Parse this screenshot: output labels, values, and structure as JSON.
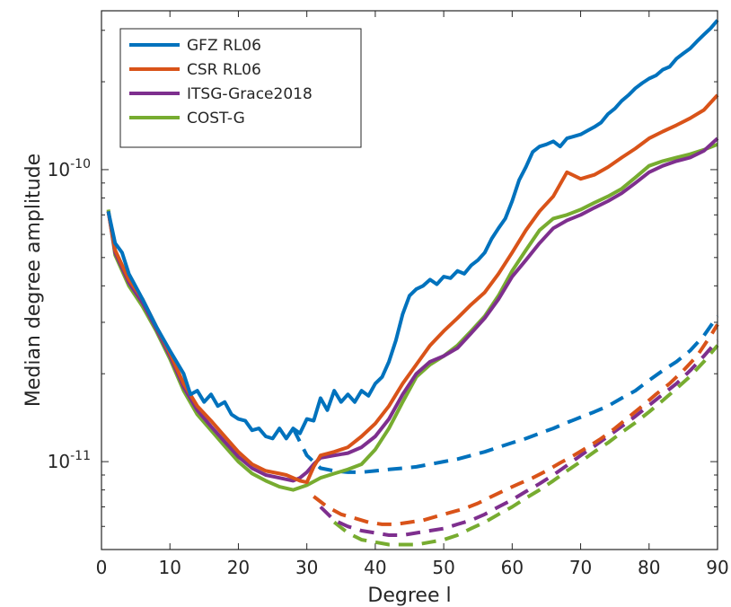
{
  "chart_data": {
    "type": "line",
    "xlabel": "Degree l",
    "ylabel": "Median degree amplitude",
    "xlim": [
      0,
      90
    ],
    "ylim": [
      5e-12,
      3.5e-10
    ],
    "yscale": "log",
    "x_ticks": [
      {
        "value": 0,
        "label": "0"
      },
      {
        "value": 10,
        "label": "10"
      },
      {
        "value": 20,
        "label": "20"
      },
      {
        "value": 30,
        "label": "30"
      },
      {
        "value": 40,
        "label": "40"
      },
      {
        "value": 50,
        "label": "50"
      },
      {
        "value": 60,
        "label": "60"
      },
      {
        "value": 70,
        "label": "70"
      },
      {
        "value": 80,
        "label": "80"
      },
      {
        "value": 90,
        "label": "90"
      }
    ],
    "y_ticks": [
      {
        "value": 1e-11,
        "base": "10",
        "exp": "-11"
      },
      {
        "value": 1e-10,
        "base": "10",
        "exp": "-10"
      }
    ],
    "legend_position": "top-left",
    "series": [
      {
        "name": "GFZ RL06",
        "color": "#0072BD",
        "solid": {
          "x": [
            1,
            2,
            3,
            4,
            6,
            8,
            10,
            12,
            13,
            14,
            15,
            16,
            17,
            18,
            19,
            20,
            21,
            22,
            23,
            24,
            25,
            26,
            27,
            28,
            29,
            30,
            31,
            32,
            33,
            34,
            35,
            36,
            37,
            38,
            39,
            40,
            41,
            42,
            43,
            44,
            45,
            46,
            47,
            48,
            49,
            50,
            51,
            52,
            53,
            54,
            55,
            56,
            57,
            58,
            59,
            60,
            61,
            62,
            63,
            64,
            65,
            66,
            67,
            68,
            69,
            70,
            71,
            72,
            73,
            74,
            75,
            76,
            77,
            78,
            79,
            80,
            81,
            82,
            83,
            84,
            85,
            86,
            87,
            88,
            89,
            90
          ],
          "y": [
            7.2e-11,
            5.6e-11,
            5.2e-11,
            4.4e-11,
            3.6e-11,
            2.9e-11,
            2.4e-11,
            2e-11,
            1.7e-11,
            1.75e-11,
            1.6e-11,
            1.7e-11,
            1.55e-11,
            1.6e-11,
            1.45e-11,
            1.4e-11,
            1.38e-11,
            1.28e-11,
            1.3e-11,
            1.22e-11,
            1.2e-11,
            1.3e-11,
            1.2e-11,
            1.3e-11,
            1.25e-11,
            1.4e-11,
            1.38e-11,
            1.65e-11,
            1.5e-11,
            1.75e-11,
            1.6e-11,
            1.7e-11,
            1.6e-11,
            1.75e-11,
            1.68e-11,
            1.85e-11,
            1.95e-11,
            2.2e-11,
            2.6e-11,
            3.2e-11,
            3.7e-11,
            3.9e-11,
            4e-11,
            4.2e-11,
            4.05e-11,
            4.3e-11,
            4.25e-11,
            4.5e-11,
            4.4e-11,
            4.7e-11,
            4.9e-11,
            5.2e-11,
            5.8e-11,
            6.3e-11,
            6.8e-11,
            7.8e-11,
            9.2e-11,
            1.02e-10,
            1.15e-10,
            1.2e-10,
            1.22e-10,
            1.25e-10,
            1.2e-10,
            1.28e-10,
            1.3e-10,
            1.32e-10,
            1.36e-10,
            1.4e-10,
            1.45e-10,
            1.55e-10,
            1.62e-10,
            1.72e-10,
            1.8e-10,
            1.9e-10,
            1.98e-10,
            2.05e-10,
            2.1e-10,
            2.2e-10,
            2.25e-10,
            2.4e-10,
            2.5e-10,
            2.6e-10,
            2.75e-10,
            2.9e-10,
            3.05e-10,
            3.25e-10
          ]
        },
        "dashed": {
          "x": [
            28,
            30,
            32,
            34,
            36,
            38,
            40,
            42,
            44,
            46,
            48,
            50,
            52,
            54,
            56,
            58,
            60,
            62,
            64,
            66,
            68,
            70,
            72,
            74,
            76,
            78,
            80,
            82,
            84,
            86,
            88,
            90
          ],
          "y": [
            1.3e-11,
            1.05e-11,
            9.5e-12,
            9.3e-12,
            9.2e-12,
            9.2e-12,
            9.3e-12,
            9.4e-12,
            9.5e-12,
            9.6e-12,
            9.8e-12,
            1e-11,
            1.02e-11,
            1.05e-11,
            1.08e-11,
            1.12e-11,
            1.16e-11,
            1.2e-11,
            1.25e-11,
            1.3e-11,
            1.36e-11,
            1.42e-11,
            1.48e-11,
            1.55e-11,
            1.65e-11,
            1.75e-11,
            1.9e-11,
            2.05e-11,
            2.2e-11,
            2.4e-11,
            2.7e-11,
            3.15e-11
          ]
        }
      },
      {
        "name": "CSR RL06",
        "color": "#D95319",
        "solid": {
          "x": [
            1,
            2,
            4,
            6,
            8,
            10,
            12,
            14,
            16,
            18,
            20,
            22,
            24,
            26,
            27,
            28,
            29,
            30,
            31,
            32,
            34,
            36,
            38,
            40,
            42,
            44,
            46,
            48,
            50,
            52,
            54,
            56,
            58,
            60,
            62,
            64,
            66,
            68,
            70,
            72,
            74,
            76,
            78,
            80,
            82,
            84,
            86,
            88,
            90
          ],
          "y": [
            7.2e-11,
            5.3e-11,
            4.2e-11,
            3.6e-11,
            2.9e-11,
            2.35e-11,
            1.85e-11,
            1.55e-11,
            1.38e-11,
            1.22e-11,
            1.08e-11,
            9.8e-12,
            9.3e-12,
            9.1e-12,
            9e-12,
            8.8e-12,
            8.6e-12,
            8.5e-12,
            9.6e-12,
            1.05e-11,
            1.08e-11,
            1.12e-11,
            1.22e-11,
            1.35e-11,
            1.55e-11,
            1.85e-11,
            2.15e-11,
            2.5e-11,
            2.8e-11,
            3.1e-11,
            3.45e-11,
            3.8e-11,
            4.4e-11,
            5.2e-11,
            6.2e-11,
            7.2e-11,
            8.1e-11,
            9.8e-11,
            9.3e-11,
            9.6e-11,
            1.02e-10,
            1.1e-10,
            1.18e-10,
            1.28e-10,
            1.35e-10,
            1.42e-10,
            1.5e-10,
            1.6e-10,
            1.8e-10
          ]
        },
        "dashed": {
          "x": [
            31,
            33,
            35,
            37,
            39,
            41,
            43,
            45,
            47,
            49,
            51,
            53,
            55,
            57,
            59,
            61,
            63,
            65,
            67,
            69,
            71,
            73,
            75,
            77,
            79,
            81,
            83,
            85,
            87,
            89,
            90
          ],
          "y": [
            7.6e-12,
            7e-12,
            6.6e-12,
            6.4e-12,
            6.2e-12,
            6.1e-12,
            6.1e-12,
            6.2e-12,
            6.3e-12,
            6.5e-12,
            6.7e-12,
            6.9e-12,
            7.2e-12,
            7.6e-12,
            8e-12,
            8.4e-12,
            8.8e-12,
            9.3e-12,
            9.9e-12,
            1.05e-11,
            1.12e-11,
            1.2e-11,
            1.3e-11,
            1.42e-11,
            1.55e-11,
            1.7e-11,
            1.85e-11,
            2.05e-11,
            2.3e-11,
            2.7e-11,
            2.95e-11
          ]
        }
      },
      {
        "name": "ITSG-Grace2018",
        "color": "#7E2F8E",
        "solid": {
          "x": [
            1,
            2,
            4,
            6,
            8,
            10,
            12,
            14,
            16,
            18,
            20,
            22,
            24,
            26,
            28,
            29,
            30,
            31,
            32,
            34,
            36,
            38,
            40,
            42,
            44,
            46,
            48,
            50,
            52,
            54,
            56,
            58,
            60,
            62,
            64,
            66,
            68,
            70,
            72,
            74,
            76,
            78,
            80,
            82,
            84,
            86,
            88,
            90
          ],
          "y": [
            7.2e-11,
            5.2e-11,
            4.1e-11,
            3.5e-11,
            2.85e-11,
            2.3e-11,
            1.8e-11,
            1.5e-11,
            1.32e-11,
            1.17e-11,
            1.04e-11,
            9.5e-12,
            9e-12,
            8.8e-12,
            8.6e-12,
            8.8e-12,
            9.2e-12,
            9.8e-12,
            1.03e-11,
            1.05e-11,
            1.07e-11,
            1.12e-11,
            1.22e-11,
            1.4e-11,
            1.7e-11,
            2e-11,
            2.2e-11,
            2.3e-11,
            2.45e-11,
            2.75e-11,
            3.1e-11,
            3.6e-11,
            4.3e-11,
            4.9e-11,
            5.6e-11,
            6.3e-11,
            6.7e-11,
            7e-11,
            7.4e-11,
            7.8e-11,
            8.3e-11,
            9e-11,
            9.8e-11,
            1.03e-10,
            1.07e-10,
            1.1e-10,
            1.16e-10,
            1.28e-10
          ]
        },
        "dashed": {
          "x": [
            32,
            34,
            36,
            38,
            40,
            42,
            44,
            46,
            48,
            50,
            52,
            54,
            56,
            58,
            60,
            62,
            64,
            66,
            68,
            70,
            72,
            74,
            76,
            78,
            80,
            82,
            84,
            86,
            88,
            90
          ],
          "y": [
            7e-12,
            6.3e-12,
            6e-12,
            5.8e-12,
            5.7e-12,
            5.6e-12,
            5.6e-12,
            5.7e-12,
            5.8e-12,
            5.9e-12,
            6.1e-12,
            6.3e-12,
            6.6e-12,
            7e-12,
            7.4e-12,
            7.9e-12,
            8.4e-12,
            9e-12,
            9.7e-12,
            1.05e-11,
            1.13e-11,
            1.22e-11,
            1.32e-11,
            1.43e-11,
            1.56e-11,
            1.7e-11,
            1.85e-11,
            2.05e-11,
            2.3e-11,
            2.6e-11
          ]
        }
      },
      {
        "name": "COST-G",
        "color": "#77AC30",
        "solid": {
          "x": [
            1,
            2,
            4,
            6,
            8,
            10,
            12,
            14,
            16,
            18,
            20,
            22,
            24,
            26,
            28,
            30,
            32,
            34,
            36,
            38,
            40,
            42,
            44,
            46,
            48,
            50,
            52,
            54,
            56,
            58,
            60,
            62,
            64,
            66,
            68,
            70,
            72,
            74,
            76,
            78,
            80,
            82,
            84,
            86,
            88,
            90
          ],
          "y": [
            7.3e-11,
            5.1e-11,
            4e-11,
            3.4e-11,
            2.8e-11,
            2.25e-11,
            1.75e-11,
            1.45e-11,
            1.28e-11,
            1.13e-11,
            1e-11,
            9.1e-12,
            8.6e-12,
            8.2e-12,
            8e-12,
            8.3e-12,
            8.8e-12,
            9.1e-12,
            9.4e-12,
            9.8e-12,
            1.1e-11,
            1.3e-11,
            1.6e-11,
            1.95e-11,
            2.15e-11,
            2.3e-11,
            2.5e-11,
            2.8e-11,
            3.15e-11,
            3.7e-11,
            4.5e-11,
            5.3e-11,
            6.2e-11,
            6.8e-11,
            7e-11,
            7.3e-11,
            7.7e-11,
            8.1e-11,
            8.6e-11,
            9.4e-11,
            1.03e-10,
            1.07e-10,
            1.1e-10,
            1.13e-10,
            1.17e-10,
            1.22e-10
          ]
        },
        "dashed": {
          "x": [
            34,
            36,
            38,
            40,
            42,
            44,
            46,
            48,
            50,
            52,
            54,
            56,
            58,
            60,
            62,
            64,
            66,
            68,
            70,
            72,
            74,
            76,
            78,
            80,
            82,
            84,
            86,
            88,
            90
          ],
          "y": [
            6.2e-12,
            5.7e-12,
            5.4e-12,
            5.3e-12,
            5.2e-12,
            5.2e-12,
            5.2e-12,
            5.3e-12,
            5.4e-12,
            5.6e-12,
            5.9e-12,
            6.2e-12,
            6.6e-12,
            7e-12,
            7.5e-12,
            8e-12,
            8.6e-12,
            9.3e-12,
            1e-11,
            1.08e-11,
            1.16e-11,
            1.26e-11,
            1.36e-11,
            1.48e-11,
            1.62e-11,
            1.78e-11,
            1.96e-11,
            2.2e-11,
            2.5e-11
          ]
        }
      }
    ]
  }
}
